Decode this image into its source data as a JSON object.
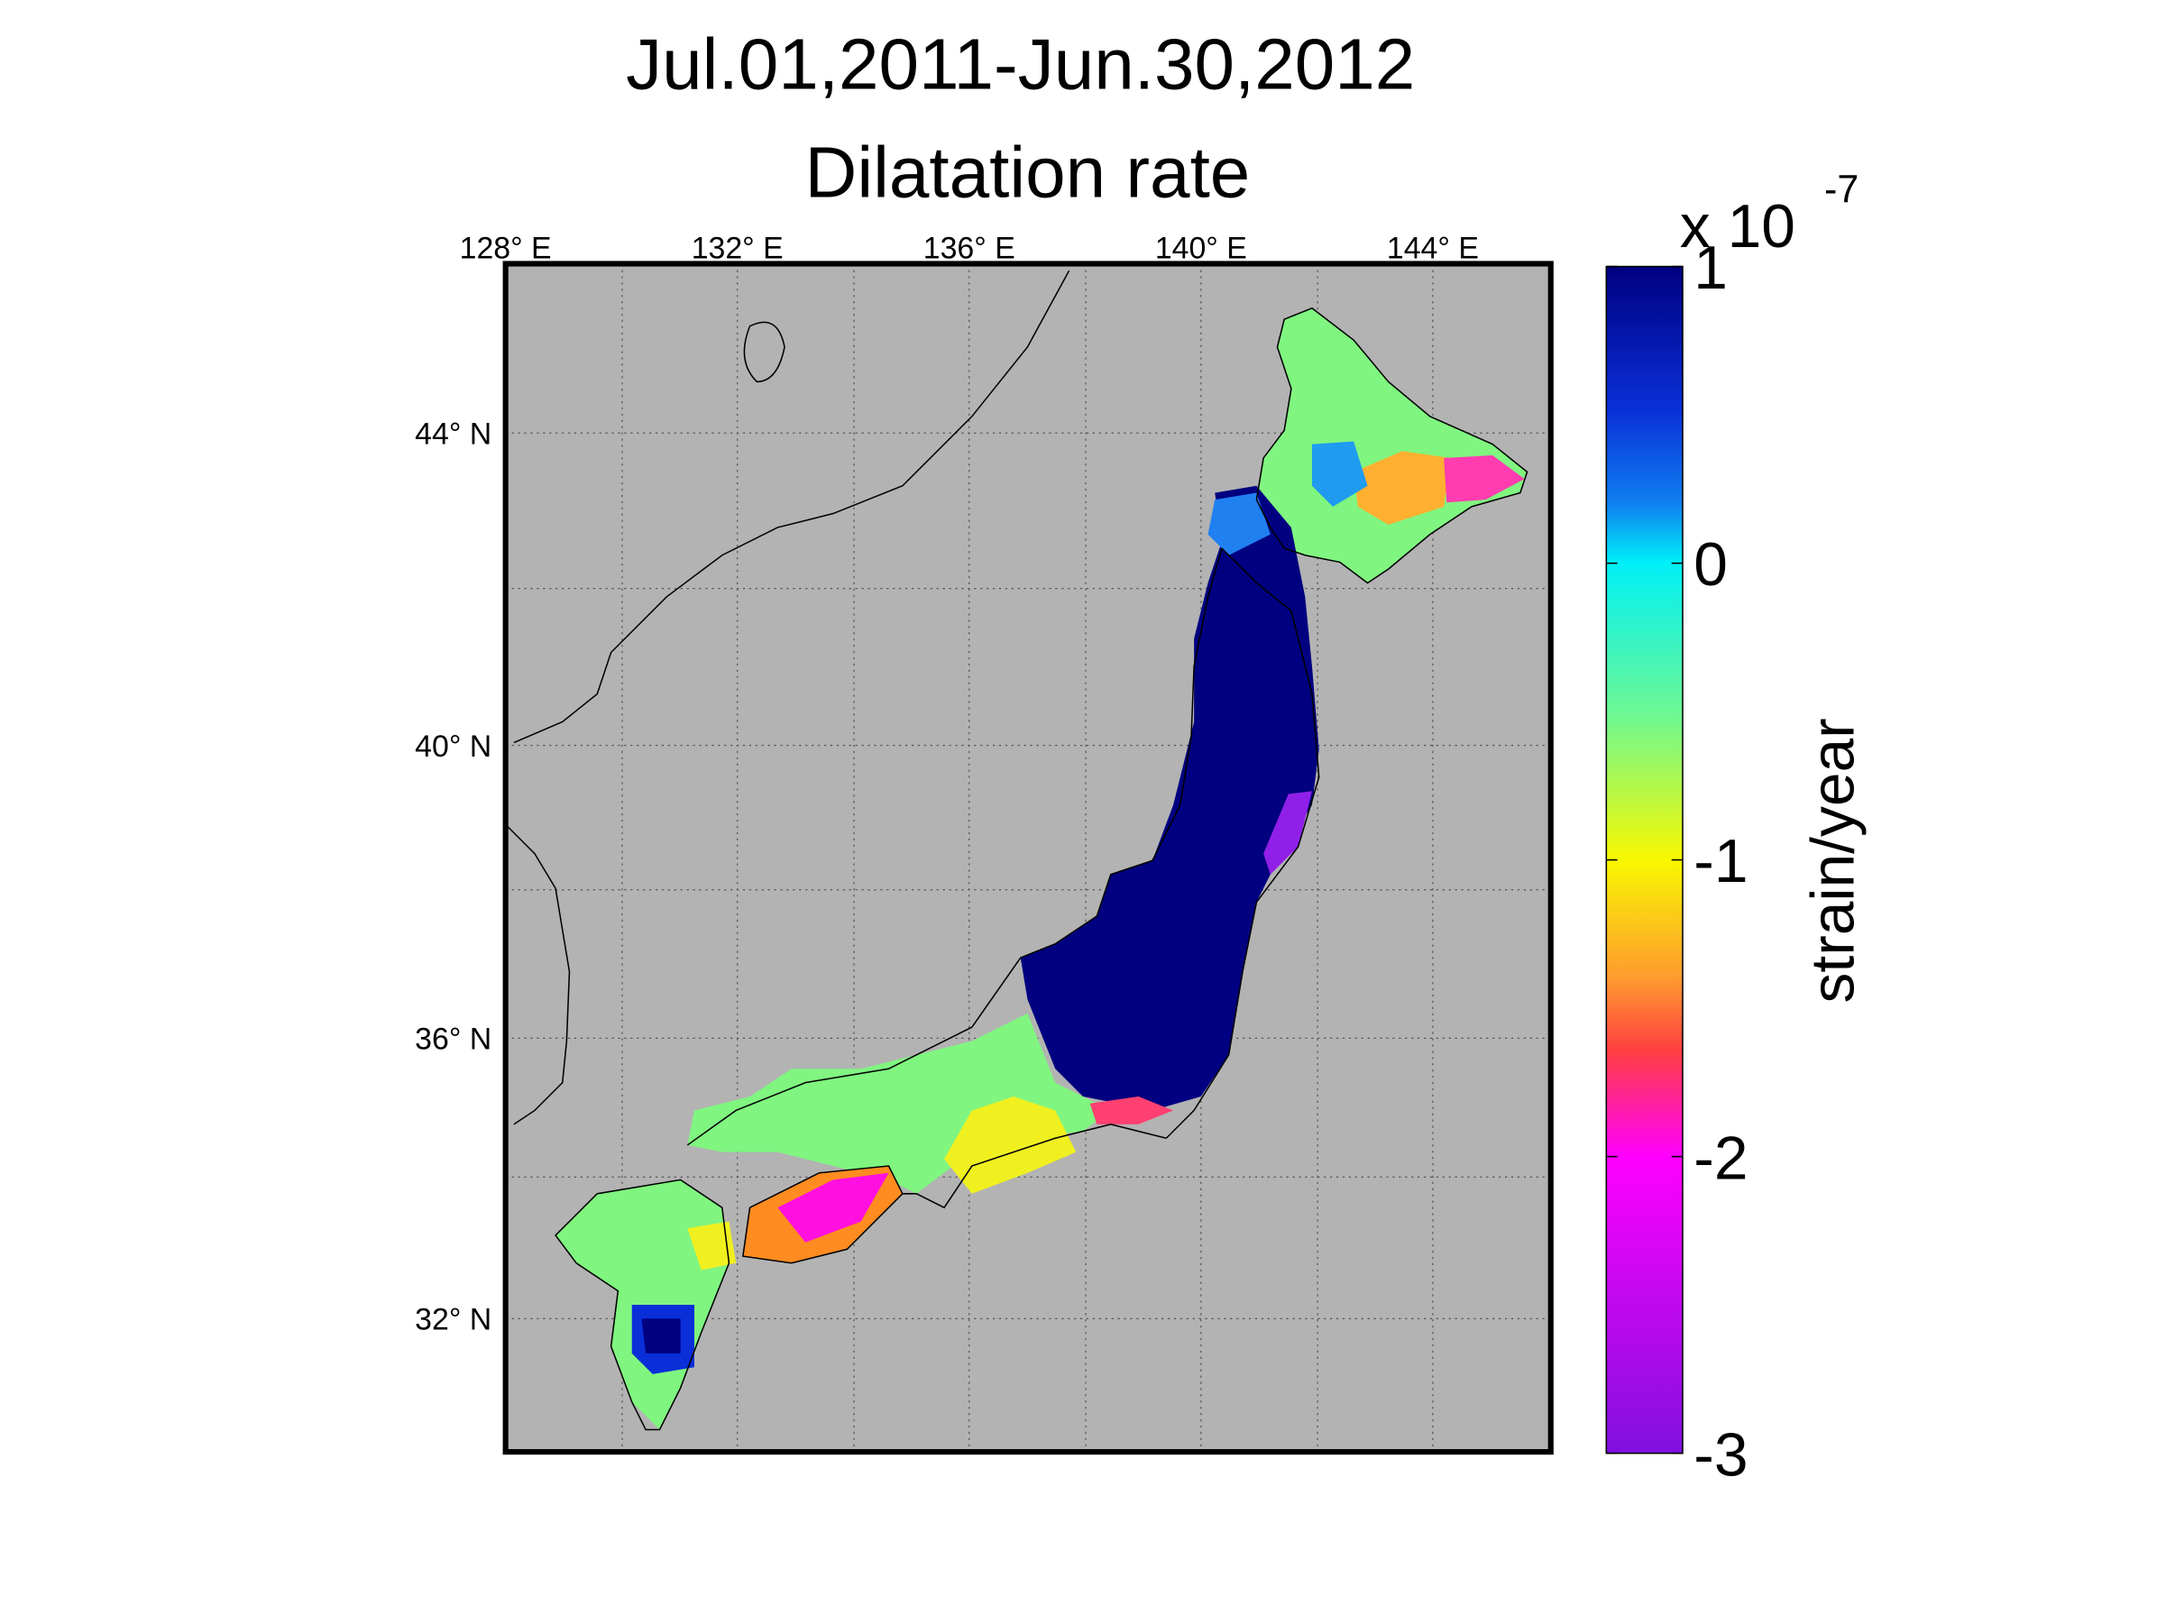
{
  "title": [
    "Jul.01,2011-Jun.30,2012",
    "Dilatation rate"
  ],
  "map": {
    "lon_labels": [
      "128° E",
      "132° E",
      "136° E",
      "140° E",
      "144° E"
    ],
    "lat_labels": [
      "44° N",
      "40° N",
      "36° N",
      "32° N"
    ]
  },
  "colorbar": {
    "label": "strain/year",
    "scale_base": "x 10",
    "scale_exponent": "-7",
    "lim": [
      -3,
      1
    ],
    "ticks": [
      1,
      0,
      -1,
      -2,
      -3
    ]
  }
}
